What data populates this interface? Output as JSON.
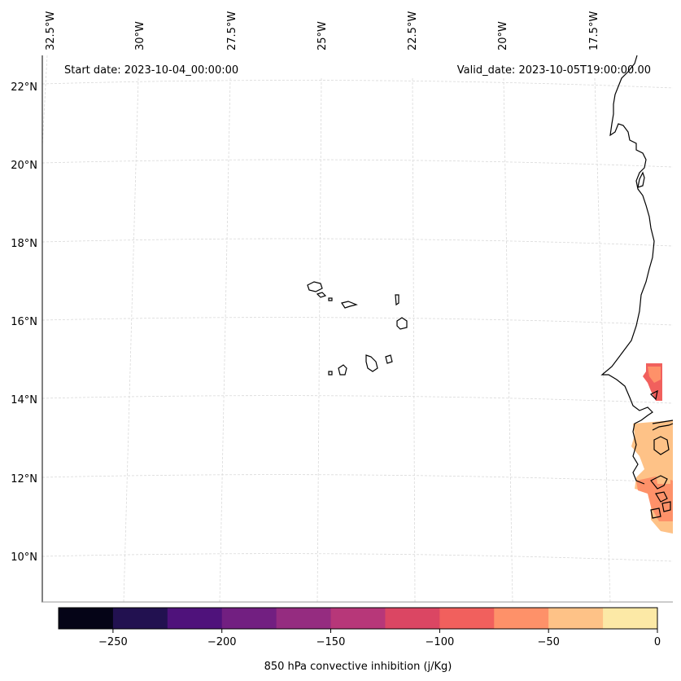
{
  "header": {
    "start_date": "Start date: 2023-10-04_00:00:00",
    "valid_date": "Valid_date: 2023-10-05T19:00:00.00"
  },
  "map": {
    "lon_labels": [
      "32.5°W",
      "30°W",
      "27.5°W",
      "25°W",
      "22.5°W",
      "20°W",
      "17.5°W"
    ],
    "lat_labels": [
      "22°N",
      "20°N",
      "18°N",
      "16°N",
      "14°N",
      "12°N",
      "10°N"
    ],
    "gridlines": true,
    "coastline_color": "#000000",
    "gridline_color": "#d9d9d9"
  },
  "colorbar": {
    "label": "850 hPa convective inhibition (j/Kg)",
    "ticks": [
      "−250",
      "−200",
      "−150",
      "−100",
      "−50",
      "0"
    ],
    "range": [
      -275,
      0
    ],
    "colors": [
      "#050417",
      "#221150",
      "#4f127b",
      "#721f81",
      "#952c80",
      "#b73779",
      "#db4663",
      "#f1605d",
      "#fe9169",
      "#fec287",
      "#fce9a6"
    ]
  },
  "shading": {
    "colors": {
      "mid_orange": "#fe9169",
      "light_orange": "#fec287",
      "red_orange": "#f1605d"
    }
  }
}
